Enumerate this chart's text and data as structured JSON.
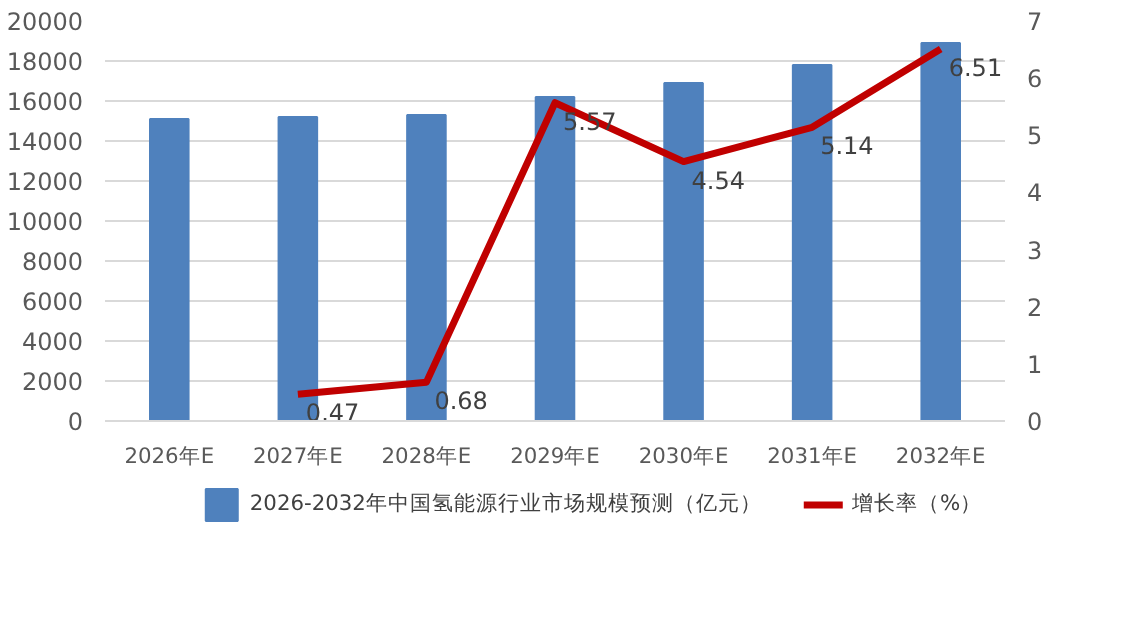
{
  "chart_data": {
    "type": "bar",
    "categories": [
      "2026年E",
      "2027年E",
      "2028年E",
      "2029年E",
      "2030年E",
      "2031年E",
      "2032年E"
    ],
    "series": [
      {
        "name": "2026-2032年中国氢能源行业市场规模预测（亿元）",
        "color": "#4f81bd",
        "values": [
          15100,
          15200,
          15300,
          16200,
          16900,
          17800,
          18900
        ]
      },
      {
        "name": "增长率（%）",
        "type": "line",
        "axis": "y2",
        "color": "#c00000",
        "values": [
          null,
          0.47,
          0.68,
          5.57,
          4.54,
          5.14,
          6.51
        ],
        "value_labels": [
          null,
          "0.47",
          "0.68",
          "5.57",
          "4.54",
          "5.14",
          "6.51"
        ]
      }
    ],
    "ylim": [
      0,
      20000
    ],
    "yticks": [
      0,
      2000,
      4000,
      6000,
      8000,
      10000,
      12000,
      14000,
      16000,
      18000,
      20000
    ],
    "y2lim": [
      0,
      7
    ],
    "y2ticks": [
      0,
      1,
      2,
      3,
      4,
      5,
      6,
      7
    ],
    "grid": "y",
    "legend": "bottom"
  }
}
